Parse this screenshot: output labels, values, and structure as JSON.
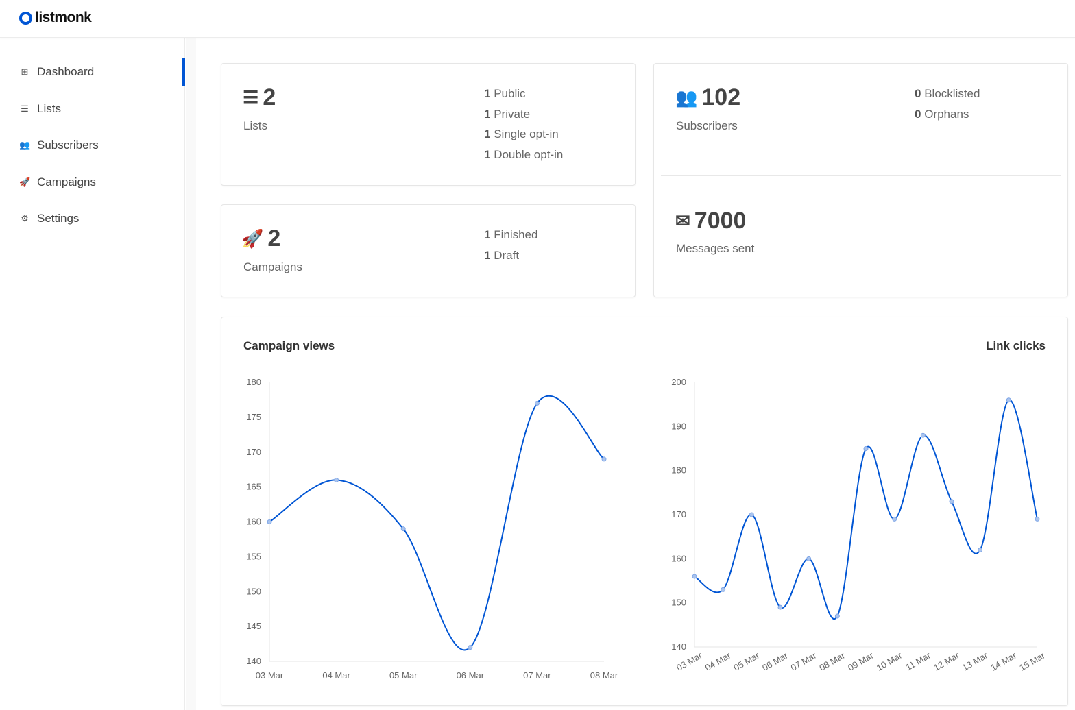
{
  "app": {
    "name": "listmonk",
    "accent": "#0055d4"
  },
  "sidebar": {
    "items": [
      {
        "label": "Dashboard",
        "icon": "table-icon",
        "active": true
      },
      {
        "label": "Lists",
        "icon": "list-icon"
      },
      {
        "label": "Subscribers",
        "icon": "users-icon"
      },
      {
        "label": "Campaigns",
        "icon": "rocket-icon"
      },
      {
        "label": "Settings",
        "icon": "gear-icon"
      }
    ]
  },
  "cards": {
    "lists": {
      "count": "2",
      "label": "Lists",
      "stats": [
        {
          "n": "1",
          "label": "Public"
        },
        {
          "n": "1",
          "label": "Private"
        },
        {
          "n": "1",
          "label": "Single opt-in"
        },
        {
          "n": "1",
          "label": "Double opt-in"
        }
      ]
    },
    "campaigns": {
      "count": "2",
      "label": "Campaigns",
      "stats": [
        {
          "n": "1",
          "label": "Finished"
        },
        {
          "n": "1",
          "label": "Draft"
        }
      ]
    },
    "subscribers": {
      "count": "102",
      "label": "Subscribers",
      "stats": [
        {
          "n": "0",
          "label": "Blocklisted"
        },
        {
          "n": "0",
          "label": "Orphans"
        }
      ]
    },
    "messages": {
      "count": "7000",
      "label": "Messages sent"
    }
  },
  "chart_data": [
    {
      "type": "line",
      "title": "Campaign views",
      "categories": [
        "03 Mar",
        "04 Mar",
        "05 Mar",
        "06 Mar",
        "07 Mar",
        "08 Mar"
      ],
      "values": [
        160,
        166,
        159,
        142,
        177,
        169
      ],
      "ylim": [
        140,
        180
      ],
      "yticks": [
        140,
        145,
        150,
        155,
        160,
        165,
        170,
        175,
        180
      ],
      "color": "#0055d4",
      "smooth": true,
      "grid": false
    },
    {
      "type": "line",
      "title": "Link clicks",
      "categories": [
        "03 Mar",
        "04 Mar",
        "05 Mar",
        "06 Mar",
        "07 Mar",
        "08 Mar",
        "09 Mar",
        "10 Mar",
        "11 Mar",
        "12 Mar",
        "13 Mar",
        "14 Mar",
        "15 Mar"
      ],
      "values": [
        156,
        153,
        170,
        149,
        160,
        147,
        185,
        169,
        188,
        173,
        162,
        196,
        169
      ],
      "ylim": [
        140,
        200
      ],
      "yticks": [
        140,
        150,
        160,
        170,
        180,
        190,
        200
      ],
      "color": "#0055d4",
      "smooth": true,
      "grid": false
    }
  ]
}
